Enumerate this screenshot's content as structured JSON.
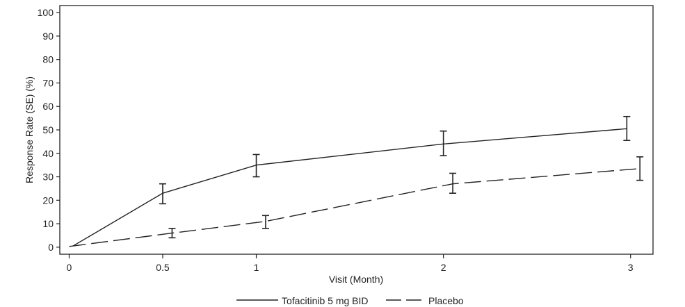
{
  "chart_data": {
    "type": "line",
    "xlabel": "Visit (Month)",
    "ylabel": "Response Rate (SE) (%)",
    "xlim": [
      -0.05,
      3.12
    ],
    "ylim": [
      -3,
      103
    ],
    "x_ticks": [
      0,
      0.5,
      1,
      2,
      3
    ],
    "x_tick_labels": [
      "0",
      "0.5",
      "1",
      "2",
      "3"
    ],
    "y_ticks": [
      0,
      10,
      20,
      30,
      40,
      50,
      60,
      70,
      80,
      90,
      100
    ],
    "y_tick_labels": [
      "0",
      "10",
      "20",
      "30",
      "40",
      "50",
      "60",
      "70",
      "80",
      "90",
      "100"
    ],
    "grid": false,
    "legend_position": "bottom",
    "series": [
      {
        "name": "Tofacitinib 5 mg BID",
        "line_style": "solid",
        "points": [
          {
            "x": 0.02,
            "y": 0.5
          },
          {
            "x": 0.5,
            "y": 23,
            "err_low": 18.5,
            "err_high": 27
          },
          {
            "x": 1.0,
            "y": 35,
            "err_low": 30,
            "err_high": 39.5
          },
          {
            "x": 2.0,
            "y": 44,
            "err_low": 39,
            "err_high": 49.5
          },
          {
            "x": 2.98,
            "y": 50.5,
            "err_low": 45.5,
            "err_high": 55.7
          }
        ]
      },
      {
        "name": "Placebo",
        "line_style": "dashed",
        "points": [
          {
            "x": 0.0,
            "y": 0.3
          },
          {
            "x": 0.55,
            "y": 6,
            "err_low": 4,
            "err_high": 8
          },
          {
            "x": 1.05,
            "y": 11,
            "err_low": 8,
            "err_high": 13.5
          },
          {
            "x": 2.05,
            "y": 27,
            "err_low": 23,
            "err_high": 31.5
          },
          {
            "x": 3.05,
            "y": 33.5,
            "err_low": 28.5,
            "err_high": 38.5
          }
        ]
      }
    ]
  }
}
